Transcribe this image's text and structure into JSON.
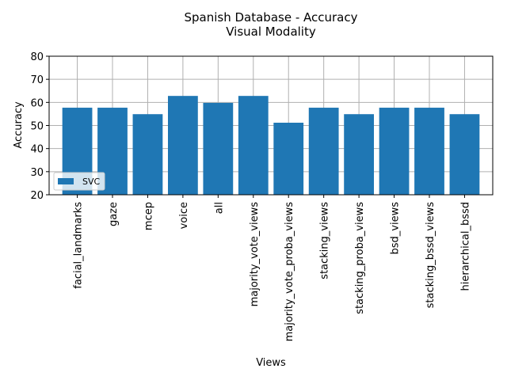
{
  "chart_data": {
    "type": "bar",
    "title": "Spanish Database - Accuracy",
    "subtitle": "Visual Modality",
    "xlabel": "Views",
    "ylabel": "Accuracy",
    "ylim": [
      20,
      80
    ],
    "yticks": [
      20,
      30,
      40,
      50,
      60,
      70,
      80
    ],
    "grid": true,
    "legend_position": "lower-left",
    "categories": [
      "facial_landmarks",
      "gaze",
      "mcep",
      "voice",
      "all",
      "majority_vote_views",
      "majority_vote_proba_views",
      "stacking_views",
      "stacking_proba_views",
      "bsd_views",
      "stacking_bssd_views",
      "hierarchical_bssd"
    ],
    "series": [
      {
        "name": "SVC",
        "color": "#1f77b4",
        "values": [
          57.7,
          57.7,
          54.9,
          62.8,
          59.8,
          62.8,
          51.2,
          57.7,
          54.9,
          57.7,
          57.7,
          54.9
        ]
      }
    ]
  }
}
